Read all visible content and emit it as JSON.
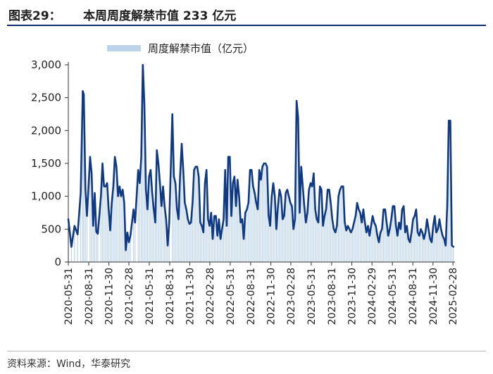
{
  "header": {
    "figure_label": "图表29：",
    "title": "本周周度解禁市值 233 亿元"
  },
  "footer": {
    "source": "资料来源：Wind，华泰研究"
  },
  "colors": {
    "line": "#0f3a83",
    "bar": "#bcd3ea",
    "rule": "#0f2f6b"
  },
  "chart_data": {
    "type": "line",
    "title": "",
    "legend": {
      "label": "周度解禁市值（亿元）",
      "placement": "top-center"
    },
    "ylim": [
      0,
      3000
    ],
    "yticks": [
      "0",
      "500",
      "1,000",
      "1,500",
      "2,000",
      "2,500",
      "3,000"
    ],
    "ytick_values": [
      0,
      500,
      1000,
      1500,
      2000,
      2500,
      3000
    ],
    "xticks": [
      "2020-05-31",
      "2020-08-31",
      "2020-11-30",
      "2021-02-28",
      "2021-05-31",
      "2021-08-31",
      "2021-11-30",
      "2022-02-28",
      "2022-05-31",
      "2022-08-31",
      "2022-11-30",
      "2023-02-28",
      "2023-05-31",
      "2023-08-31",
      "2023-11-30",
      "2024-02-29",
      "2024-05-31",
      "2024-08-31",
      "2024-11-30",
      "2025-02-28"
    ],
    "x_range": [
      "2020-05-31",
      "2025-03-09"
    ],
    "series": [
      {
        "name": "周度解禁市值（亿元）",
        "points": [
          [
            "2020-05-31",
            650
          ],
          [
            "2020-06-14",
            230
          ],
          [
            "2020-06-28",
            550
          ],
          [
            "2020-07-12",
            420
          ],
          [
            "2020-07-26",
            1050
          ],
          [
            "2020-08-04",
            2600
          ],
          [
            "2020-08-09",
            2550
          ],
          [
            "2020-08-16",
            1100
          ],
          [
            "2020-08-23",
            700
          ],
          [
            "2020-09-06",
            1600
          ],
          [
            "2020-09-13",
            1350
          ],
          [
            "2020-09-20",
            550
          ],
          [
            "2020-09-27",
            1050
          ],
          [
            "2020-10-04",
            460
          ],
          [
            "2020-10-11",
            430
          ],
          [
            "2020-10-25",
            1000
          ],
          [
            "2020-11-01",
            1500
          ],
          [
            "2020-11-08",
            1150
          ],
          [
            "2020-11-15",
            1150
          ],
          [
            "2020-11-22",
            1200
          ],
          [
            "2020-11-29",
            800
          ],
          [
            "2020-12-06",
            480
          ],
          [
            "2020-12-13",
            900
          ],
          [
            "2020-12-20",
            1150
          ],
          [
            "2020-12-27",
            1600
          ],
          [
            "2021-01-03",
            1450
          ],
          [
            "2021-01-10",
            1000
          ],
          [
            "2021-01-17",
            1150
          ],
          [
            "2021-01-24",
            1000
          ],
          [
            "2021-01-31",
            1100
          ],
          [
            "2021-02-07",
            900
          ],
          [
            "2021-02-14",
            180
          ],
          [
            "2021-02-21",
            450
          ],
          [
            "2021-02-28",
            300
          ],
          [
            "2021-03-07",
            400
          ],
          [
            "2021-03-21",
            800
          ],
          [
            "2021-03-28",
            600
          ],
          [
            "2021-04-11",
            1400
          ],
          [
            "2021-04-18",
            1200
          ],
          [
            "2021-04-25",
            1600
          ],
          [
            "2021-05-02",
            3000
          ],
          [
            "2021-05-09",
            2400
          ],
          [
            "2021-05-16",
            1100
          ],
          [
            "2021-05-23",
            800
          ],
          [
            "2021-05-30",
            1300
          ],
          [
            "2021-06-06",
            1400
          ],
          [
            "2021-06-13",
            1050
          ],
          [
            "2021-06-20",
            800
          ],
          [
            "2021-06-27",
            600
          ],
          [
            "2021-07-04",
            1700
          ],
          [
            "2021-07-11",
            1500
          ],
          [
            "2021-07-18",
            1200
          ],
          [
            "2021-07-25",
            850
          ],
          [
            "2021-08-01",
            1150
          ],
          [
            "2021-08-08",
            850
          ],
          [
            "2021-08-15",
            650
          ],
          [
            "2021-08-22",
            250
          ],
          [
            "2021-08-29",
            600
          ],
          [
            "2021-09-12",
            2250
          ],
          [
            "2021-09-19",
            1300
          ],
          [
            "2021-09-26",
            1200
          ],
          [
            "2021-10-03",
            800
          ],
          [
            "2021-10-10",
            650
          ],
          [
            "2021-10-17",
            1300
          ],
          [
            "2021-10-24",
            1800
          ],
          [
            "2021-10-31",
            1400
          ],
          [
            "2021-11-07",
            900
          ],
          [
            "2021-11-14",
            800
          ],
          [
            "2021-11-21",
            650
          ],
          [
            "2021-11-28",
            580
          ],
          [
            "2021-12-05",
            600
          ],
          [
            "2021-12-12",
            900
          ],
          [
            "2021-12-19",
            1400
          ],
          [
            "2021-12-26",
            1450
          ],
          [
            "2022-01-02",
            1450
          ],
          [
            "2022-01-09",
            1300
          ],
          [
            "2022-01-16",
            600
          ],
          [
            "2022-01-23",
            550
          ],
          [
            "2022-01-30",
            450
          ],
          [
            "2022-02-06",
            1200
          ],
          [
            "2022-02-13",
            1400
          ],
          [
            "2022-02-20",
            650
          ],
          [
            "2022-02-27",
            550
          ],
          [
            "2022-03-06",
            750
          ],
          [
            "2022-03-13",
            350
          ],
          [
            "2022-03-20",
            700
          ],
          [
            "2022-03-27",
            700
          ],
          [
            "2022-04-03",
            400
          ],
          [
            "2022-04-10",
            650
          ],
          [
            "2022-04-17",
            350
          ],
          [
            "2022-04-24",
            500
          ],
          [
            "2022-05-01",
            650
          ],
          [
            "2022-05-08",
            1400
          ],
          [
            "2022-05-15",
            550
          ],
          [
            "2022-05-22",
            1600
          ],
          [
            "2022-05-29",
            1600
          ],
          [
            "2022-06-05",
            700
          ],
          [
            "2022-06-12",
            1200
          ],
          [
            "2022-06-19",
            1300
          ],
          [
            "2022-06-26",
            850
          ],
          [
            "2022-07-03",
            1250
          ],
          [
            "2022-07-10",
            1000
          ],
          [
            "2022-07-17",
            600
          ],
          [
            "2022-07-24",
            650
          ],
          [
            "2022-07-31",
            350
          ],
          [
            "2022-08-07",
            750
          ],
          [
            "2022-08-14",
            800
          ],
          [
            "2022-08-21",
            900
          ],
          [
            "2022-08-28",
            1400
          ],
          [
            "2022-09-04",
            1400
          ],
          [
            "2022-09-11",
            1150
          ],
          [
            "2022-09-18",
            1050
          ],
          [
            "2022-09-25",
            900
          ],
          [
            "2022-10-02",
            800
          ],
          [
            "2022-10-09",
            1400
          ],
          [
            "2022-10-16",
            1250
          ],
          [
            "2022-10-23",
            1450
          ],
          [
            "2022-10-30",
            1500
          ],
          [
            "2022-11-06",
            1500
          ],
          [
            "2022-11-13",
            1450
          ],
          [
            "2022-11-20",
            700
          ],
          [
            "2022-11-27",
            550
          ],
          [
            "2022-12-04",
            1000
          ],
          [
            "2022-12-11",
            1200
          ],
          [
            "2022-12-18",
            1000
          ],
          [
            "2022-12-25",
            500
          ],
          [
            "2023-01-01",
            850
          ],
          [
            "2023-01-08",
            1100
          ],
          [
            "2023-01-15",
            1000
          ],
          [
            "2023-01-22",
            650
          ],
          [
            "2023-01-29",
            700
          ],
          [
            "2023-02-05",
            1050
          ],
          [
            "2023-02-12",
            1100
          ],
          [
            "2023-02-19",
            1000
          ],
          [
            "2023-02-26",
            900
          ],
          [
            "2023-03-05",
            850
          ],
          [
            "2023-03-12",
            500
          ],
          [
            "2023-03-19",
            650
          ],
          [
            "2023-03-26",
            2450
          ],
          [
            "2023-04-02",
            2200
          ],
          [
            "2023-04-09",
            750
          ],
          [
            "2023-04-16",
            1450
          ],
          [
            "2023-04-23",
            1150
          ],
          [
            "2023-04-30",
            850
          ],
          [
            "2023-05-07",
            600
          ],
          [
            "2023-05-14",
            750
          ],
          [
            "2023-05-21",
            1100
          ],
          [
            "2023-05-28",
            1200
          ],
          [
            "2023-06-04",
            1150
          ],
          [
            "2023-06-11",
            1350
          ],
          [
            "2023-06-18",
            800
          ],
          [
            "2023-06-25",
            650
          ],
          [
            "2023-07-02",
            600
          ],
          [
            "2023-07-09",
            1150
          ],
          [
            "2023-07-16",
            1100
          ],
          [
            "2023-07-23",
            550
          ],
          [
            "2023-07-30",
            700
          ],
          [
            "2023-08-06",
            800
          ],
          [
            "2023-08-13",
            1100
          ],
          [
            "2023-08-20",
            1100
          ],
          [
            "2023-08-27",
            900
          ],
          [
            "2023-09-03",
            650
          ],
          [
            "2023-09-10",
            500
          ],
          [
            "2023-09-17",
            450
          ],
          [
            "2023-09-24",
            550
          ],
          [
            "2023-10-01",
            1000
          ],
          [
            "2023-10-08",
            1100
          ],
          [
            "2023-10-15",
            1150
          ],
          [
            "2023-10-22",
            1150
          ],
          [
            "2023-10-29",
            600
          ],
          [
            "2023-11-05",
            480
          ],
          [
            "2023-11-12",
            550
          ],
          [
            "2023-11-19",
            500
          ],
          [
            "2023-11-26",
            450
          ],
          [
            "2023-12-03",
            500
          ],
          [
            "2023-12-10",
            600
          ],
          [
            "2023-12-17",
            700
          ],
          [
            "2023-12-24",
            900
          ],
          [
            "2023-12-31",
            800
          ],
          [
            "2024-01-07",
            750
          ],
          [
            "2024-01-14",
            600
          ],
          [
            "2024-01-21",
            800
          ],
          [
            "2024-01-28",
            600
          ],
          [
            "2024-02-04",
            450
          ],
          [
            "2024-02-11",
            550
          ],
          [
            "2024-02-18",
            400
          ],
          [
            "2024-02-25",
            550
          ],
          [
            "2024-03-03",
            700
          ],
          [
            "2024-03-10",
            600
          ],
          [
            "2024-03-17",
            550
          ],
          [
            "2024-03-24",
            400
          ],
          [
            "2024-03-31",
            300
          ],
          [
            "2024-04-07",
            450
          ],
          [
            "2024-04-14",
            500
          ],
          [
            "2024-04-21",
            800
          ],
          [
            "2024-04-28",
            800
          ],
          [
            "2024-05-05",
            600
          ],
          [
            "2024-05-12",
            400
          ],
          [
            "2024-05-19",
            500
          ],
          [
            "2024-05-26",
            650
          ],
          [
            "2024-06-02",
            850
          ],
          [
            "2024-06-09",
            850
          ],
          [
            "2024-06-16",
            550
          ],
          [
            "2024-06-23",
            400
          ],
          [
            "2024-06-30",
            600
          ],
          [
            "2024-07-07",
            500
          ],
          [
            "2024-07-14",
            800
          ],
          [
            "2024-07-21",
            850
          ],
          [
            "2024-07-28",
            450
          ],
          [
            "2024-08-04",
            550
          ],
          [
            "2024-08-11",
            350
          ],
          [
            "2024-08-18",
            300
          ],
          [
            "2024-08-25",
            450
          ],
          [
            "2024-09-01",
            650
          ],
          [
            "2024-09-08",
            700
          ],
          [
            "2024-09-15",
            800
          ],
          [
            "2024-09-22",
            450
          ],
          [
            "2024-09-29",
            400
          ],
          [
            "2024-10-06",
            500
          ],
          [
            "2024-10-13",
            450
          ],
          [
            "2024-10-20",
            350
          ],
          [
            "2024-10-27",
            450
          ],
          [
            "2024-11-03",
            650
          ],
          [
            "2024-11-10",
            500
          ],
          [
            "2024-11-17",
            350
          ],
          [
            "2024-11-24",
            300
          ],
          [
            "2024-12-01",
            550
          ],
          [
            "2024-12-08",
            700
          ],
          [
            "2024-12-15",
            450
          ],
          [
            "2024-12-22",
            500
          ],
          [
            "2024-12-29",
            650
          ],
          [
            "2025-01-05",
            500
          ],
          [
            "2025-01-12",
            400
          ],
          [
            "2025-01-19",
            350
          ],
          [
            "2025-01-26",
            250
          ],
          [
            "2025-02-02",
            850
          ],
          [
            "2025-02-09",
            2150
          ],
          [
            "2025-02-16",
            2150
          ],
          [
            "2025-02-23",
            250
          ],
          [
            "2025-03-02",
            233
          ]
        ]
      }
    ]
  }
}
